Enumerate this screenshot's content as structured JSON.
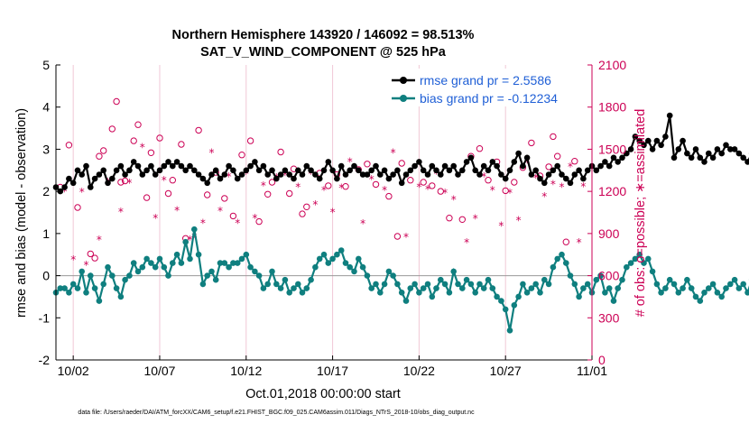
{
  "chart_data": {
    "type": "line",
    "title_line1": "Northern Hemisphere 143920 / 146092 = 98.513%",
    "title_line2": "SAT_V_WIND_COMPONENT @ 525 hPa",
    "xlabel": "Oct.01,2018 00:00:00 start",
    "ylabel_left": "rmse and bias (model - observation)",
    "ylabel_right": "# of obs: o=possible; ∗=assimilated",
    "footer": "data file: /Users/raeder/DAI/ATM_forcXX/CAM6_setup/f.e21.FHIST_BGC.f09_025.CAM6assim.011/Diags_NTrS_2018-10/obs_diag_output.nc",
    "xlim": [
      1,
      32
    ],
    "ylim_left": [
      -2,
      5
    ],
    "ylim_right": [
      0,
      2100
    ],
    "x_tick_values": [
      2,
      7,
      12,
      17,
      22,
      27,
      32
    ],
    "x_tick_labels": [
      "10/02",
      "10/07",
      "10/12",
      "10/17",
      "10/22",
      "10/27",
      "11/01"
    ],
    "y_left_ticks": [
      "-2",
      "-1",
      "0",
      "1",
      "2",
      "3",
      "4",
      "5"
    ],
    "y_right_ticks": [
      "0",
      "300",
      "600",
      "900",
      "1200",
      "1500",
      "1800",
      "2100"
    ],
    "colors": {
      "rmse": "#000000",
      "bias": "#0f7f7f",
      "obs": "#cc0055",
      "zero_line": "#999999",
      "legend_text": "#1f5fd6"
    },
    "legend": {
      "placement": "top-right",
      "entries": [
        "rmse grand pr = 2.5586",
        "bias grand pr = -0.12234"
      ]
    },
    "series": [
      {
        "name": "rmse grand pr = 2.5586",
        "axis": "left",
        "step": 0.25,
        "x0": 1,
        "values": [
          2.1,
          2.0,
          2.1,
          2.3,
          2.2,
          2.5,
          2.4,
          2.6,
          2.1,
          2.3,
          2.4,
          2.5,
          2.2,
          2.3,
          2.5,
          2.6,
          2.4,
          2.5,
          2.7,
          2.6,
          2.4,
          2.5,
          2.6,
          2.4,
          2.5,
          2.6,
          2.7,
          2.6,
          2.7,
          2.6,
          2.5,
          2.6,
          2.5,
          2.4,
          2.3,
          2.2,
          2.4,
          2.5,
          2.3,
          2.4,
          2.6,
          2.5,
          2.3,
          2.4,
          2.5,
          2.6,
          2.7,
          2.5,
          2.6,
          2.4,
          2.5,
          2.3,
          2.4,
          2.5,
          2.4,
          2.3,
          2.5,
          2.4,
          2.6,
          2.5,
          2.4,
          2.3,
          2.5,
          2.7,
          2.5,
          2.3,
          2.6,
          2.4,
          2.5,
          2.6,
          2.5,
          2.4,
          2.4,
          2.5,
          2.6,
          2.4,
          2.5,
          2.3,
          2.4,
          2.5,
          2.2,
          2.4,
          2.5,
          2.6,
          2.7,
          2.5,
          2.4,
          2.6,
          2.5,
          2.4,
          2.6,
          2.5,
          2.6,
          2.4,
          2.5,
          2.7,
          2.8,
          2.5,
          2.4,
          2.6,
          2.5,
          2.7,
          2.6,
          2.4,
          2.3,
          2.5,
          2.7,
          2.9,
          2.6,
          2.8,
          2.4,
          2.5,
          2.3,
          2.2,
          2.4,
          2.5,
          2.6,
          2.4,
          2.3,
          2.2,
          2.4,
          2.5,
          2.3,
          2.5,
          2.6,
          2.5,
          2.6,
          2.7,
          2.6,
          2.8,
          2.7,
          2.8,
          2.9,
          3.0,
          3.3,
          3.2,
          3.1,
          3.2,
          3.0,
          3.2,
          3.1,
          3.3,
          3.8,
          2.8,
          3.0,
          3.2,
          2.9,
          2.8,
          3.0,
          2.8,
          2.7,
          2.9,
          2.8,
          3.0,
          2.9,
          3.1,
          3.0,
          3.0,
          2.9,
          2.8,
          2.7,
          2.9,
          2.8,
          2.7,
          2.6,
          2.9,
          2.8,
          2.7,
          2.6,
          2.8,
          2.9,
          2.8,
          2.7,
          2.8,
          2.8,
          2.8,
          2.9,
          3.3
        ]
      },
      {
        "name": "bias grand pr = -0.12234",
        "axis": "left",
        "step": 0.25,
        "x0": 1,
        "values": [
          -0.4,
          -0.3,
          -0.3,
          -0.4,
          -0.2,
          -0.3,
          0.1,
          -0.4,
          0.0,
          -0.3,
          -0.6,
          -0.2,
          0.2,
          0.0,
          -0.3,
          -0.5,
          -0.1,
          0.0,
          0.3,
          0.1,
          0.2,
          0.4,
          0.3,
          0.2,
          0.4,
          0.2,
          0.0,
          0.3,
          0.5,
          0.3,
          0.8,
          0.4,
          1.1,
          0.5,
          -0.2,
          0.0,
          0.1,
          -0.1,
          0.3,
          0.3,
          0.2,
          0.3,
          0.3,
          0.4,
          0.5,
          0.2,
          0.1,
          0.0,
          -0.3,
          -0.2,
          0.1,
          -0.2,
          -0.3,
          -0.1,
          -0.4,
          -0.3,
          -0.2,
          -0.4,
          -0.3,
          -0.1,
          0.2,
          0.4,
          0.5,
          0.3,
          0.4,
          0.5,
          0.6,
          0.3,
          0.2,
          0.1,
          0.4,
          0.2,
          0.0,
          -0.3,
          -0.2,
          -0.4,
          -0.2,
          0.1,
          0.0,
          -0.2,
          -0.4,
          -0.6,
          -0.3,
          -0.2,
          -0.4,
          -0.3,
          -0.2,
          -0.5,
          -0.3,
          -0.1,
          -0.2,
          -0.4,
          0.1,
          -0.2,
          -0.3,
          -0.1,
          -0.2,
          -0.4,
          -0.2,
          -0.3,
          -0.1,
          -0.3,
          -0.5,
          -0.6,
          -0.8,
          -1.3,
          -0.7,
          -0.5,
          -0.2,
          -0.4,
          -0.3,
          -0.2,
          -0.4,
          -0.1,
          -0.2,
          0.2,
          0.4,
          0.5,
          0.3,
          0.0,
          -0.2,
          -0.5,
          -0.3,
          -0.2,
          -0.4,
          -0.1,
          0.0,
          -0.4,
          -0.3,
          -0.6,
          -0.3,
          -0.1,
          0.2,
          0.3,
          0.4,
          0.5,
          0.3,
          0.4,
          0.1,
          -0.2,
          -0.4,
          -0.3,
          -0.1,
          -0.2,
          -0.4,
          -0.3,
          -0.1,
          -0.3,
          -0.5,
          -0.6,
          -0.4,
          -0.3,
          -0.2,
          -0.4,
          -0.5,
          -0.3,
          -0.2,
          -0.1,
          -0.3,
          -0.2,
          -0.4,
          -0.1,
          0.0,
          0.1,
          0.1,
          -0.1,
          -0.2,
          -0.3,
          -0.2,
          -0.3,
          -0.3,
          -0.2,
          -0.4
        ]
      },
      {
        "name": "possible",
        "axis": "right",
        "marker": "o",
        "x": [
          1.25,
          1.75,
          2.25,
          3.0,
          3.25,
          3.5,
          3.75,
          4.25,
          4.5,
          4.75,
          5.0,
          5.5,
          5.75,
          6.25,
          6.5,
          7.0,
          7.5,
          7.75,
          8.25,
          8.5,
          9.25,
          9.75,
          10.25,
          10.75,
          11.25,
          11.75,
          12.25,
          12.75,
          13.25,
          13.5,
          14.0,
          14.5,
          14.75,
          15.25,
          15.5,
          16.25,
          16.75,
          17.25,
          17.75,
          18.5,
          19.0,
          19.5,
          20.25,
          20.75,
          21.0,
          21.5,
          22.25,
          22.75,
          23.25,
          23.75,
          24.5,
          25.0,
          25.5,
          26.0,
          26.5,
          27.0,
          27.5,
          28.0,
          28.5,
          29.0,
          29.5,
          29.75,
          30.0,
          30.5,
          31.0
        ],
        "values": [
          1230,
          1530,
          1085,
          755,
          725,
          1450,
          1490,
          1645,
          1840,
          1265,
          1275,
          1560,
          1675,
          1155,
          1475,
          1580,
          1185,
          1280,
          1535,
          865,
          1635,
          1175,
          1335,
          1150,
          1025,
          1460,
          1560,
          985,
          1180,
          1265,
          1480,
          1185,
          1360,
          1040,
          1090,
          1330,
          1240,
          1320,
          1235,
          1355,
          1395,
          1250,
          1165,
          880,
          1400,
          1280,
          1265,
          1240,
          1200,
          1010,
          1000,
          1450,
          1505,
          1280,
          1410,
          1205,
          1265,
          1370,
          1545,
          1310,
          1375,
          1590,
          1450,
          840,
          1415
        ]
      },
      {
        "name": "assimilated",
        "axis": "right",
        "marker": "*",
        "x": [
          1.5,
          2.0,
          2.5,
          2.75,
          3.5,
          4.0,
          4.75,
          5.25,
          6.0,
          6.75,
          7.25,
          8.0,
          8.75,
          9.0,
          9.5,
          10.0,
          10.5,
          11.0,
          11.5,
          12.0,
          12.5,
          13.0,
          13.75,
          14.25,
          15.0,
          15.75,
          16.0,
          16.5,
          17.0,
          17.5,
          18.0,
          18.75,
          19.25,
          20.0,
          20.5,
          21.25,
          22.0,
          22.5,
          23.0,
          23.5,
          24.0,
          24.75,
          25.25,
          25.75,
          26.25,
          26.75,
          27.25,
          27.75,
          28.25,
          28.75,
          29.25,
          29.75,
          30.25,
          30.75,
          31.25,
          31.5
        ],
        "values": [
          1205,
          720,
          1200,
          680,
          860,
          1270,
          1060,
          1265,
          1520,
          1015,
          1285,
          1070,
          860,
          880,
          980,
          1480,
          1065,
          1310,
          980,
          1330,
          1015,
          1245,
          1305,
          1320,
          1235,
          1330,
          1110,
          1215,
          1055,
          1230,
          1415,
          975,
          1290,
          1215,
          1480,
          880,
          1235,
          1220,
          1330,
          1195,
          1145,
          840,
          1010,
          1310,
          1215,
          960,
          1195,
          1000,
          1410,
          1300,
          1170,
          1255,
          1235,
          1380,
          840,
          1240
        ]
      }
    ]
  }
}
